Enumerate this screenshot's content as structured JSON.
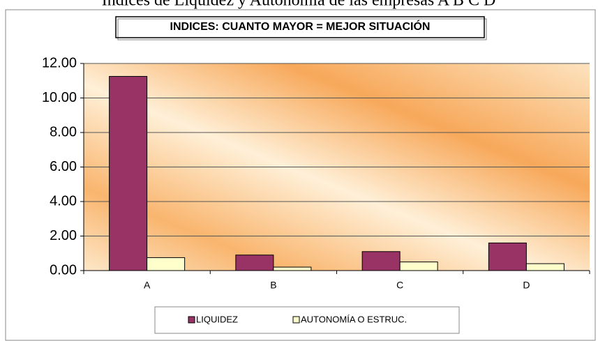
{
  "chart_data": {
    "type": "bar",
    "caption": "Indices de Liquidez y Autonomía de las empresas  A B C D",
    "title": "INDICES: CUANTO MAYOR = MEJOR SITUACIÓN",
    "categories": [
      "A",
      "B",
      "C",
      "D"
    ],
    "series": [
      {
        "name": "LIQUIDEZ",
        "color": "#993366",
        "values": [
          11.25,
          0.9,
          1.1,
          1.6
        ]
      },
      {
        "name": "AUTONOMÍA O ESTRUC.",
        "color": "#ffffcc",
        "values": [
          0.75,
          0.2,
          0.5,
          0.4
        ]
      }
    ],
    "ylim": [
      0,
      12
    ],
    "yticks": [
      {
        "value": 0,
        "label": "0.00"
      },
      {
        "value": 2,
        "label": "2.00"
      },
      {
        "value": 4,
        "label": "4.00"
      },
      {
        "value": 6,
        "label": "6.00"
      },
      {
        "value": 8,
        "label": "8.00"
      },
      {
        "value": 10,
        "label": "10.00"
      },
      {
        "value": 12,
        "label": "12.00"
      }
    ],
    "grid": true,
    "legend": "bottom"
  }
}
